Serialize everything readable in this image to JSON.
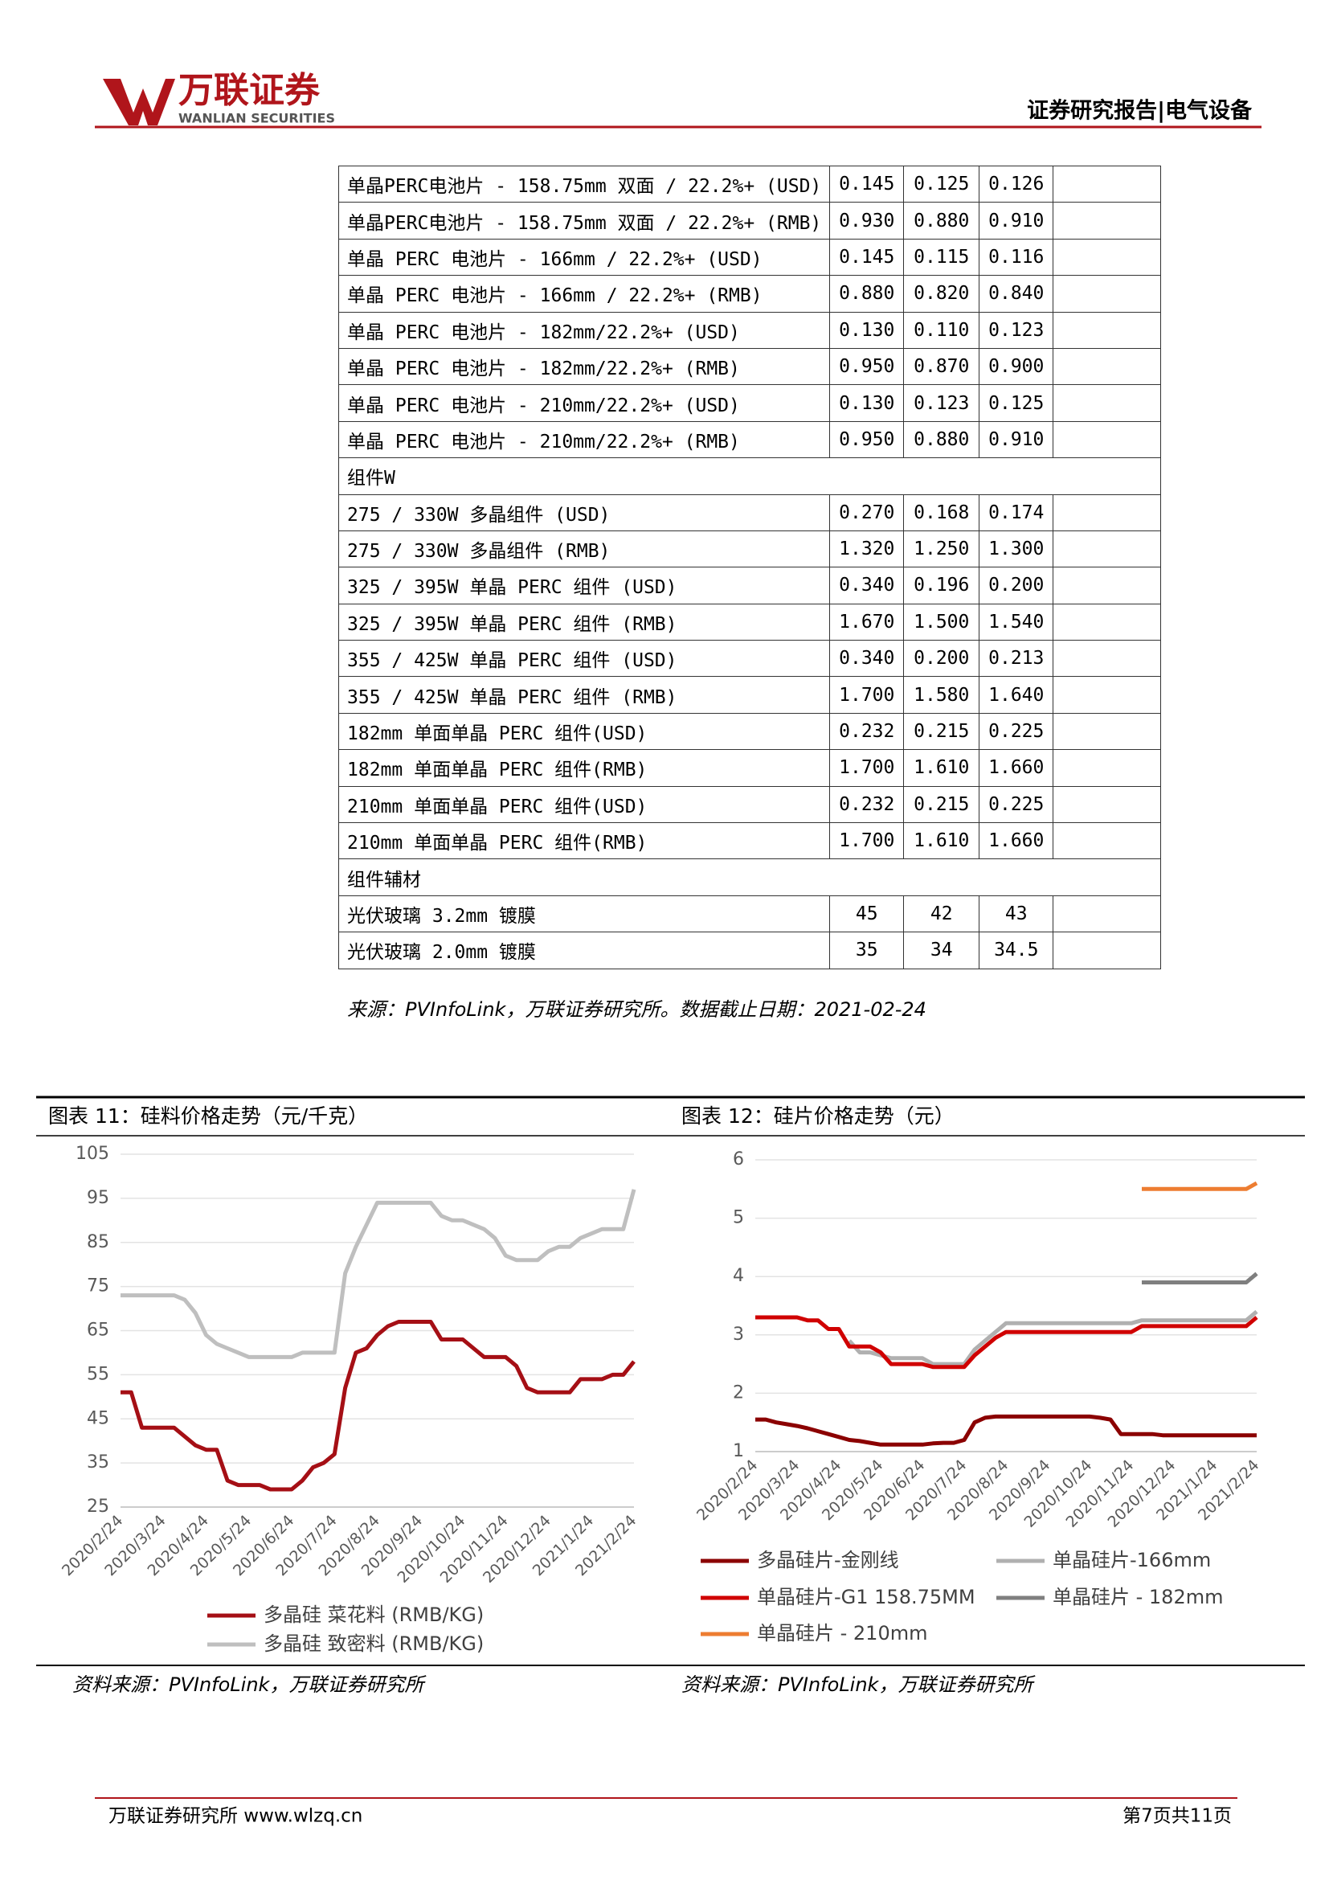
{
  "header": {
    "logo_cn": "万联证券",
    "logo_en": "WANLIAN SECURITIES",
    "report_type": "证券研究报告|电气设备"
  },
  "table": {
    "rows": [
      [
        "单晶PERC电池片 - 158.75mm 双面 / 22.2%+ (USD)",
        "0.145",
        "0.125",
        "0.126"
      ],
      [
        "单晶PERC电池片 - 158.75mm 双面 / 22.2%+ (RMB)",
        "0.930",
        "0.880",
        "0.910"
      ],
      [
        "单晶 PERC 电池片 - 166mm / 22.2%+ (USD)",
        "0.145",
        "0.115",
        "0.116"
      ],
      [
        "单晶 PERC 电池片 - 166mm / 22.2%+ (RMB)",
        "0.880",
        "0.820",
        "0.840"
      ],
      [
        "单晶 PERC 电池片 - 182mm/22.2%+ (USD)",
        "0.130",
        "0.110",
        "0.123"
      ],
      [
        "单晶 PERC 电池片 - 182mm/22.2%+ (RMB)",
        "0.950",
        "0.870",
        "0.900"
      ],
      [
        "单晶 PERC 电池片 - 210mm/22.2%+ (USD)",
        "0.130",
        "0.123",
        "0.125"
      ],
      [
        "单晶 PERC 电池片 - 210mm/22.2%+ (RMB)",
        "0.950",
        "0.880",
        "0.910"
      ],
      [
        "组件W"
      ],
      [
        "275 / 330W 多晶组件 (USD)",
        "0.270",
        "0.168",
        "0.174"
      ],
      [
        "275 / 330W 多晶组件 (RMB)",
        "1.320",
        "1.250",
        "1.300"
      ],
      [
        "325 / 395W 单晶 PERC 组件 (USD)",
        "0.340",
        "0.196",
        "0.200"
      ],
      [
        "325 / 395W 单晶 PERC 组件 (RMB)",
        "1.670",
        "1.500",
        "1.540"
      ],
      [
        "355 / 425W 单晶 PERC 组件 (USD)",
        "0.340",
        "0.200",
        "0.213"
      ],
      [
        "355 / 425W 单晶 PERC 组件 (RMB)",
        "1.700",
        "1.580",
        "1.640"
      ],
      [
        "182mm 单面单晶 PERC 组件(USD)",
        "0.232",
        "0.215",
        "0.225"
      ],
      [
        "182mm 单面单晶 PERC 组件(RMB)",
        "1.700",
        "1.610",
        "1.660"
      ],
      [
        "210mm 单面单晶 PERC 组件(USD)",
        "0.232",
        "0.215",
        "0.225"
      ],
      [
        "210mm 单面单晶 PERC 组件(RMB)",
        "1.700",
        "1.610",
        "1.660"
      ],
      [
        "组件辅材"
      ],
      [
        "光伏玻璃 3.2mm 镀膜",
        "45",
        "42",
        "43"
      ],
      [
        "光伏玻璃 2.0mm 镀膜",
        "35",
        "34",
        "34.5"
      ]
    ],
    "source": "来源：PVInfoLink，万联证券研究所。数据截止日期：2021-02-24"
  },
  "chart_data": [
    {
      "type": "line",
      "title": "图表 11：硅料价格走势（元/千克）",
      "source": "资料来源：PVInfoLink，万联证券研究所",
      "categories": [
        "2020/2/24",
        null,
        null,
        null,
        "2020/3/24",
        null,
        null,
        null,
        "2020/4/24",
        null,
        null,
        null,
        "2020/5/24",
        null,
        null,
        null,
        "2020/6/24",
        null,
        null,
        null,
        "2020/7/24",
        null,
        null,
        null,
        "2020/8/24",
        null,
        null,
        null,
        "2020/9/24",
        null,
        null,
        null,
        "2020/10/24",
        null,
        null,
        null,
        "2020/11/24",
        null,
        null,
        null,
        "2020/12/24",
        null,
        null,
        null,
        "2021/1/24",
        null,
        null,
        null,
        "2021/2/24"
      ],
      "series": [
        {
          "name": "多晶硅 菜花料 (RMB/KG)",
          "color": "#a50f15",
          "values": [
            51,
            51,
            43,
            43,
            43,
            43,
            41,
            39,
            38,
            38,
            31,
            30,
            30,
            30,
            29,
            29,
            29,
            31,
            34,
            35,
            37,
            52,
            60,
            61,
            64,
            66,
            67,
            67,
            67,
            67,
            63,
            63,
            63,
            61,
            59,
            59,
            59,
            57,
            52,
            51,
            51,
            51,
            51,
            54,
            54,
            54,
            55,
            55,
            58
          ]
        },
        {
          "name": "多晶硅 致密料 (RMB/KG)",
          "color": "#bfbfbf",
          "values": [
            73,
            73,
            73,
            73,
            73,
            73,
            72,
            69,
            64,
            62,
            61,
            60,
            59,
            59,
            59,
            59,
            59,
            60,
            60,
            60,
            60,
            78,
            84,
            89,
            94,
            94,
            94,
            94,
            94,
            94,
            91,
            90,
            90,
            89,
            88,
            86,
            82,
            81,
            81,
            81,
            83,
            84,
            84,
            86,
            87,
            88,
            88,
            88,
            97
          ]
        }
      ],
      "ylim": [
        25,
        105
      ],
      "yticks": [
        25,
        35,
        45,
        55,
        65,
        75,
        85,
        95,
        105
      ],
      "grid": true,
      "legend": "bottom"
    },
    {
      "type": "line",
      "title": "图表 12：硅片价格走势（元）",
      "source": "资料来源：PVInfoLink，万联证券研究所",
      "categories": [
        "2020/2/24",
        null,
        null,
        null,
        "2020/3/24",
        null,
        null,
        null,
        "2020/4/24",
        null,
        null,
        null,
        "2020/5/24",
        null,
        null,
        null,
        "2020/6/24",
        null,
        null,
        null,
        "2020/7/24",
        null,
        null,
        null,
        "2020/8/24",
        null,
        null,
        null,
        "2020/9/24",
        null,
        null,
        null,
        "2020/10/24",
        null,
        null,
        null,
        "2020/11/24",
        null,
        null,
        null,
        "2020/12/24",
        null,
        null,
        null,
        "2021/1/24",
        null,
        null,
        null,
        "2021/2/24"
      ],
      "series": [
        {
          "name": "多晶硅片-金刚线",
          "color": "#8b0000",
          "values": [
            1.55,
            1.55,
            1.5,
            1.47,
            1.44,
            1.4,
            1.35,
            1.3,
            1.25,
            1.2,
            1.18,
            1.15,
            1.12,
            1.12,
            1.12,
            1.12,
            1.12,
            1.14,
            1.15,
            1.15,
            1.2,
            1.5,
            1.58,
            1.6,
            1.6,
            1.6,
            1.6,
            1.6,
            1.6,
            1.6,
            1.6,
            1.6,
            1.6,
            1.58,
            1.55,
            1.3,
            1.3,
            1.3,
            1.3,
            1.28,
            1.28,
            1.28,
            1.28,
            1.28,
            1.28,
            1.28,
            1.28,
            1.28,
            1.28
          ]
        },
        {
          "name": "单晶硅片-166mm",
          "color": "#b0b0b0",
          "values": [
            null,
            null,
            null,
            null,
            null,
            null,
            null,
            null,
            null,
            2.9,
            2.7,
            2.7,
            2.65,
            2.6,
            2.6,
            2.6,
            2.6,
            2.5,
            2.5,
            2.5,
            2.5,
            2.75,
            2.9,
            3.05,
            3.2,
            3.2,
            3.2,
            3.2,
            3.2,
            3.2,
            3.2,
            3.2,
            3.2,
            3.2,
            3.2,
            3.2,
            3.2,
            3.25,
            3.25,
            3.25,
            3.25,
            3.25,
            3.25,
            3.25,
            3.25,
            3.25,
            3.25,
            3.25,
            3.4
          ]
        },
        {
          "name": "单晶硅片-G1 158.75MM",
          "color": "#d00000",
          "values": [
            3.3,
            3.3,
            3.3,
            3.3,
            3.3,
            3.25,
            3.25,
            3.1,
            3.1,
            2.8,
            2.8,
            2.8,
            2.7,
            2.5,
            2.5,
            2.5,
            2.5,
            2.45,
            2.45,
            2.45,
            2.45,
            2.65,
            2.8,
            2.95,
            3.05,
            3.05,
            3.05,
            3.05,
            3.05,
            3.05,
            3.05,
            3.05,
            3.05,
            3.05,
            3.05,
            3.05,
            3.05,
            3.15,
            3.15,
            3.15,
            3.15,
            3.15,
            3.15,
            3.15,
            3.15,
            3.15,
            3.15,
            3.15,
            3.3
          ]
        },
        {
          "name": "单晶硅片 - 182mm",
          "color": "#7f7f7f",
          "values": [
            null,
            null,
            null,
            null,
            null,
            null,
            null,
            null,
            null,
            null,
            null,
            null,
            null,
            null,
            null,
            null,
            null,
            null,
            null,
            null,
            null,
            null,
            null,
            null,
            null,
            null,
            null,
            null,
            null,
            null,
            null,
            null,
            null,
            null,
            null,
            null,
            null,
            3.9,
            3.9,
            3.9,
            3.9,
            3.9,
            3.9,
            3.9,
            3.9,
            3.9,
            3.9,
            3.9,
            4.05
          ]
        },
        {
          "name": "单晶硅片 - 210mm",
          "color": "#ed7d31",
          "values": [
            null,
            null,
            null,
            null,
            null,
            null,
            null,
            null,
            null,
            null,
            null,
            null,
            null,
            null,
            null,
            null,
            null,
            null,
            null,
            null,
            null,
            null,
            null,
            null,
            null,
            null,
            null,
            null,
            null,
            null,
            null,
            null,
            null,
            null,
            null,
            null,
            null,
            5.5,
            5.5,
            5.5,
            5.5,
            5.5,
            5.5,
            5.5,
            5.5,
            5.5,
            5.5,
            5.5,
            5.6
          ]
        }
      ],
      "ylim": [
        1,
        6
      ],
      "yticks": [
        1,
        2,
        3,
        4,
        5,
        6
      ],
      "grid": true,
      "legend": "bottom"
    }
  ],
  "footer": {
    "left": "万联证券研究所 www.wlzq.cn",
    "page": "第7页共11页"
  }
}
